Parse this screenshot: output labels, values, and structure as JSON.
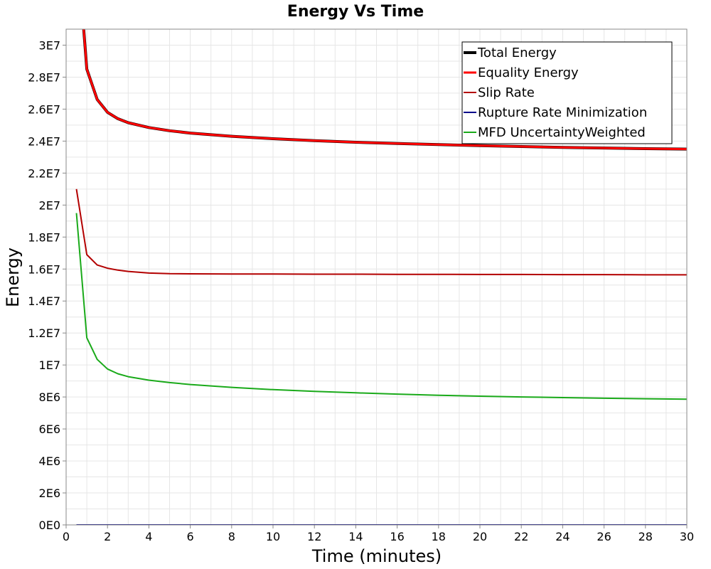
{
  "chart_data": {
    "type": "line",
    "title": "Energy Vs Time",
    "xlabel": "Time (minutes)",
    "ylabel": "Energy",
    "xlim": [
      0,
      30
    ],
    "ylim": [
      0,
      31000000
    ],
    "x_ticks": [
      0,
      2,
      4,
      6,
      8,
      10,
      12,
      14,
      16,
      18,
      20,
      22,
      24,
      26,
      28,
      30
    ],
    "y_ticks": [
      0,
      2000000,
      4000000,
      6000000,
      8000000,
      10000000,
      12000000,
      14000000,
      16000000,
      18000000,
      20000000,
      22000000,
      24000000,
      26000000,
      28000000,
      30000000
    ],
    "y_tick_labels": [
      "0E0",
      "2E6",
      "4E6",
      "6E6",
      "8E6",
      "1E7",
      "1.2E7",
      "1.4E7",
      "1.6E7",
      "1.8E7",
      "2E7",
      "2.2E7",
      "2.4E7",
      "2.6E7",
      "2.8E7",
      "3E7"
    ],
    "grid": true,
    "legend_position": "top-right",
    "x": [
      1,
      1.5,
      2,
      2.5,
      3,
      4,
      5,
      6,
      8,
      10,
      12,
      14,
      16,
      18,
      20,
      22,
      24,
      26,
      28,
      30
    ],
    "series": [
      {
        "name": "Total Energy",
        "color": "#000000",
        "width": 4,
        "x": [
          0.85,
          1,
          1.5,
          2,
          2.5,
          3,
          4,
          5,
          6,
          8,
          10,
          12,
          14,
          16,
          18,
          20,
          22,
          24,
          26,
          28,
          30
        ],
        "values": [
          31000000,
          28500000,
          26600000,
          25800000,
          25400000,
          25150000,
          24850000,
          24650000,
          24500000,
          24300000,
          24150000,
          24030000,
          23930000,
          23850000,
          23780000,
          23720000,
          23660000,
          23610000,
          23570000,
          23530000,
          23500000
        ]
      },
      {
        "name": "Equality Energy",
        "color": "#ff0000",
        "width": 3,
        "x": [
          0.85,
          1,
          1.5,
          2,
          2.5,
          3,
          4,
          5,
          6,
          8,
          10,
          12,
          14,
          16,
          18,
          20,
          22,
          24,
          26,
          28,
          30
        ],
        "values": [
          31000000,
          28500000,
          26600000,
          25800000,
          25400000,
          25150000,
          24850000,
          24650000,
          24500000,
          24300000,
          24150000,
          24030000,
          23930000,
          23850000,
          23780000,
          23720000,
          23660000,
          23610000,
          23570000,
          23530000,
          23500000
        ]
      },
      {
        "name": "Slip Rate",
        "color": "#b30000",
        "width": 2,
        "x": [
          0.5,
          1,
          1.5,
          2,
          2.5,
          3,
          4,
          5,
          6,
          8,
          10,
          12,
          14,
          16,
          18,
          20,
          22,
          24,
          26,
          28,
          30
        ],
        "values": [
          21000000,
          16900000,
          16250000,
          16050000,
          15930000,
          15850000,
          15750000,
          15710000,
          15700000,
          15690000,
          15690000,
          15680000,
          15680000,
          15670000,
          15670000,
          15660000,
          15660000,
          15650000,
          15650000,
          15640000,
          15640000
        ]
      },
      {
        "name": "Rupture Rate Minimization",
        "color": "#00008b",
        "width": 2,
        "x": [
          0.5,
          1,
          2,
          4,
          8,
          12,
          16,
          20,
          24,
          28,
          30
        ],
        "values": [
          0,
          0,
          0,
          0,
          0,
          0,
          0,
          0,
          0,
          0,
          0
        ]
      },
      {
        "name": "MFD UncertaintyWeighted",
        "color": "#1aaa1a",
        "width": 2,
        "x": [
          0.5,
          1,
          1.5,
          2,
          2.5,
          3,
          4,
          5,
          6,
          8,
          10,
          12,
          14,
          16,
          18,
          20,
          22,
          24,
          26,
          28,
          30
        ],
        "values": [
          19500000,
          11700000,
          10350000,
          9750000,
          9450000,
          9270000,
          9050000,
          8900000,
          8780000,
          8600000,
          8460000,
          8350000,
          8260000,
          8180000,
          8110000,
          8050000,
          8000000,
          7960000,
          7920000,
          7890000,
          7860000
        ]
      }
    ]
  }
}
